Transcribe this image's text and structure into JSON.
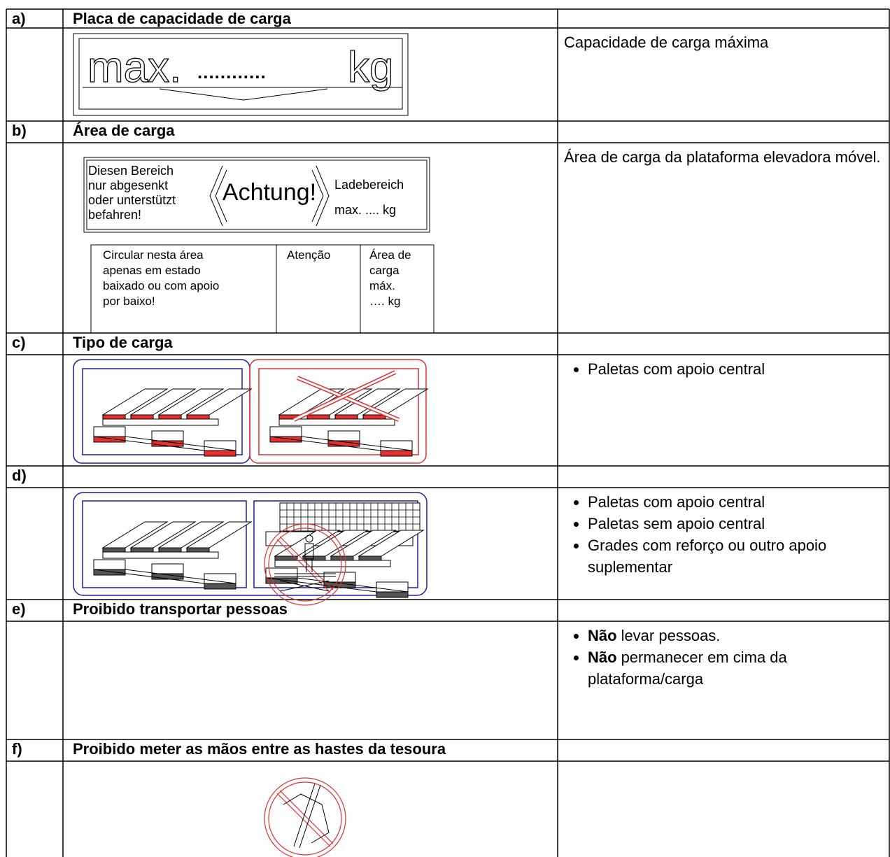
{
  "rows": [
    {
      "label": "a)",
      "title": "Placa de capacidade de carga",
      "sign": {
        "text": [
          "max.",
          "............",
          "kg"
        ]
      },
      "description": "Capacidade de carga máxima"
    },
    {
      "label": "b)",
      "title": "Área de carga",
      "sign": {
        "german": {
          "left": [
            "Diesen Bereich",
            "nur abgesenkt",
            "oder unterstützt",
            "befahren!"
          ],
          "center": "Achtung!",
          "right": [
            "Ladebereich",
            "max. .... kg"
          ]
        },
        "translation": [
          [
            "Circular nesta área",
            "apenas em estado",
            "baixado ou com apoio",
            "por baixo!"
          ],
          [
            "Atenção"
          ],
          [
            "Área de",
            "carga",
            "máx.",
            "…. kg"
          ]
        ]
      },
      "description": "Área de carga da plataforma elevadora móvel."
    },
    {
      "label": "c)",
      "title": "Tipo de carga",
      "bullets": [
        {
          "text": "Paletas com apoio central"
        }
      ]
    },
    {
      "label": "d)",
      "bullets": [
        {
          "text": "Paletas com apoio central"
        },
        {
          "text": "Paletas sem apoio central"
        },
        {
          "text": "Grades com reforço ou outro apoio suplementar"
        }
      ]
    },
    {
      "label": "e)",
      "title": "Proibido transportar pessoas",
      "bullets": [
        {
          "bold": "Não",
          "text": "levar pessoas."
        },
        {
          "bold": "Não",
          "text": "permanecer em cima da plataforma/carga"
        }
      ]
    },
    {
      "label": "f)",
      "title": "Proibido meter as mãos entre as hastes da tesoura"
    }
  ]
}
